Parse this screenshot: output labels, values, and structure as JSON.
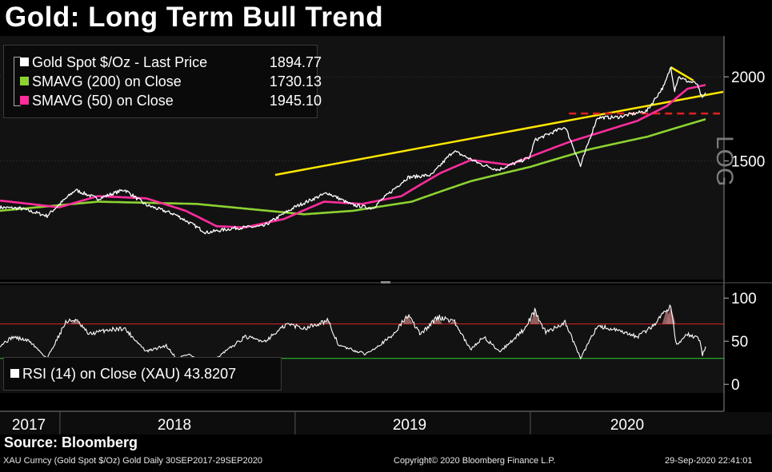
{
  "title": "Gold: Long Term Bull Trend",
  "legend": {
    "items": [
      {
        "label": "Gold Spot   $/Oz - Last Price",
        "value": "1894.77",
        "color": "#ffffff"
      },
      {
        "label": "SMAVG (200)  on Close",
        "value": "1730.13",
        "color": "#8cd331"
      },
      {
        "label": "SMAVG (50)  on Close",
        "value": "1945.10",
        "color": "#ff2d9c"
      }
    ]
  },
  "rsi_legend": {
    "label": "RSI (14)  on Close (XAU) 43.8207",
    "color": "#ffffff"
  },
  "scale_label": "LOG",
  "source": "Source:  Bloomberg",
  "footer": {
    "left": "XAU Curncy (Gold Spot  $/Oz) Gold  Daily 30SEP2017-29SEP2020",
    "center": "Copyright© 2020 Bloomberg Finance L.P.",
    "right": "29-Sep-2020 22:41:01"
  },
  "chart_data": [
    {
      "type": "line",
      "title": "Gold: Long Term Bull Trend",
      "y_scale": "log",
      "ylim": [
        1000,
        2300
      ],
      "y_ticks": [
        1500,
        2000
      ],
      "x_tick_labels": [
        "2017",
        "2018",
        "2019",
        "2020"
      ],
      "x_range": [
        "2017-09-30",
        "2020-09-29"
      ],
      "series": [
        {
          "name": "Gold Spot   $/Oz - Last Price",
          "color": "#ffffff",
          "points": [
            [
              "2017-09-30",
              1280
            ],
            [
              "2017-11-01",
              1275
            ],
            [
              "2017-12-12",
              1243
            ],
            [
              "2018-01-25",
              1358
            ],
            [
              "2018-03-01",
              1318
            ],
            [
              "2018-04-11",
              1360
            ],
            [
              "2018-05-15",
              1290
            ],
            [
              "2018-06-28",
              1250
            ],
            [
              "2018-08-16",
              1174
            ],
            [
              "2018-09-28",
              1192
            ],
            [
              "2018-11-13",
              1200
            ],
            [
              "2019-01-01",
              1282
            ],
            [
              "2019-02-20",
              1345
            ],
            [
              "2019-03-29",
              1292
            ],
            [
              "2019-05-01",
              1276
            ],
            [
              "2019-06-25",
              1418
            ],
            [
              "2019-08-01",
              1430
            ],
            [
              "2019-09-04",
              1552
            ],
            [
              "2019-10-15",
              1485
            ],
            [
              "2019-11-12",
              1455
            ],
            [
              "2019-12-31",
              1518
            ],
            [
              "2020-01-08",
              1610
            ],
            [
              "2020-02-24",
              1685
            ],
            [
              "2020-03-19",
              1473
            ],
            [
              "2020-04-14",
              1740
            ],
            [
              "2020-05-15",
              1742
            ],
            [
              "2020-06-30",
              1780
            ],
            [
              "2020-07-27",
              1942
            ],
            [
              "2020-08-06",
              2067
            ],
            [
              "2020-08-12",
              1912
            ],
            [
              "2020-08-18",
              2000
            ],
            [
              "2020-09-01",
              1970
            ],
            [
              "2020-09-15",
              1955
            ],
            [
              "2020-09-24",
              1855
            ],
            [
              "2020-09-29",
              1894.77
            ]
          ]
        },
        {
          "name": "SMAVG (50)  on Close",
          "color": "#ff2d9c",
          "points": [
            [
              "2017-09-30",
              1310
            ],
            [
              "2017-12-31",
              1280
            ],
            [
              "2018-03-01",
              1330
            ],
            [
              "2018-05-15",
              1320
            ],
            [
              "2018-07-15",
              1265
            ],
            [
              "2018-09-01",
              1200
            ],
            [
              "2018-10-15",
              1195
            ],
            [
              "2018-12-15",
              1230
            ],
            [
              "2019-02-15",
              1305
            ],
            [
              "2019-04-15",
              1295
            ],
            [
              "2019-06-15",
              1330
            ],
            [
              "2019-08-15",
              1440
            ],
            [
              "2019-10-01",
              1505
            ],
            [
              "2019-11-30",
              1480
            ],
            [
              "2020-01-15",
              1540
            ],
            [
              "2020-03-01",
              1600
            ],
            [
              "2020-04-15",
              1650
            ],
            [
              "2020-06-15",
              1720
            ],
            [
              "2020-07-31",
              1810
            ],
            [
              "2020-09-01",
              1920
            ],
            [
              "2020-09-29",
              1945.1
            ]
          ]
        },
        {
          "name": "SMAVG (200)  on Close",
          "color": "#8cd331",
          "points": [
            [
              "2017-09-30",
              1265
            ],
            [
              "2018-03-01",
              1305
            ],
            [
              "2018-08-01",
              1295
            ],
            [
              "2018-11-01",
              1270
            ],
            [
              "2019-01-15",
              1250
            ],
            [
              "2019-04-01",
              1265
            ],
            [
              "2019-07-01",
              1305
            ],
            [
              "2019-10-01",
              1400
            ],
            [
              "2020-01-01",
              1470
            ],
            [
              "2020-04-01",
              1560
            ],
            [
              "2020-07-01",
              1630
            ],
            [
              "2020-09-29",
              1730.13
            ]
          ]
        }
      ],
      "annotations": [
        {
          "type": "trendline",
          "color": "#ffe600",
          "from": [
            "2018-12-01",
            1430
          ],
          "to": [
            "2020-09-29",
            1900
          ]
        },
        {
          "type": "trendline",
          "color": "#ffe600",
          "from": [
            "2020-08-06",
            2067
          ],
          "to": [
            "2020-09-10",
            1975
          ]
        },
        {
          "type": "dashed-level",
          "color": "#e02020",
          "from": [
            "2020-03-01",
            1764
          ],
          "to": [
            "2020-09-29",
            1764
          ]
        }
      ]
    },
    {
      "type": "line",
      "ylim": [
        -10,
        115
      ],
      "y_ticks": [
        0,
        50,
        100
      ],
      "levels": [
        {
          "value": 70,
          "color": "#d22"
        },
        {
          "value": 30,
          "color": "#3c3"
        }
      ],
      "series": [
        {
          "name": "RSI (14)  on Close (XAU)",
          "color": "#ffffff",
          "points": [
            [
              "2017-09-30",
              45
            ],
            [
              "2017-10-20",
              55
            ],
            [
              "2017-11-15",
              50
            ],
            [
              "2017-12-12",
              30
            ],
            [
              "2018-01-10",
              72
            ],
            [
              "2018-01-25",
              75
            ],
            [
              "2018-02-15",
              58
            ],
            [
              "2018-03-15",
              63
            ],
            [
              "2018-04-11",
              65
            ],
            [
              "2018-05-15",
              38
            ],
            [
              "2018-06-15",
              45
            ],
            [
              "2018-07-01",
              30
            ],
            [
              "2018-07-20",
              35
            ],
            [
              "2018-08-16",
              22
            ],
            [
              "2018-09-15",
              38
            ],
            [
              "2018-10-15",
              55
            ],
            [
              "2018-11-15",
              50
            ],
            [
              "2018-12-20",
              70
            ],
            [
              "2019-01-15",
              65
            ],
            [
              "2019-02-20",
              74
            ],
            [
              "2019-03-10",
              45
            ],
            [
              "2019-04-20",
              35
            ],
            [
              "2019-05-30",
              55
            ],
            [
              "2019-06-25",
              80
            ],
            [
              "2019-07-15",
              58
            ],
            [
              "2019-08-10",
              78
            ],
            [
              "2019-09-04",
              74
            ],
            [
              "2019-09-30",
              40
            ],
            [
              "2019-10-20",
              55
            ],
            [
              "2019-11-15",
              38
            ],
            [
              "2019-12-20",
              62
            ],
            [
              "2020-01-08",
              85
            ],
            [
              "2020-01-25",
              60
            ],
            [
              "2020-02-24",
              72
            ],
            [
              "2020-03-19",
              30
            ],
            [
              "2020-04-14",
              68
            ],
            [
              "2020-05-15",
              62
            ],
            [
              "2020-06-15",
              55
            ],
            [
              "2020-07-10",
              68
            ],
            [
              "2020-07-31",
              88
            ],
            [
              "2020-08-06",
              90
            ],
            [
              "2020-08-15",
              45
            ],
            [
              "2020-09-01",
              58
            ],
            [
              "2020-09-20",
              52
            ],
            [
              "2020-09-24",
              34
            ],
            [
              "2020-09-29",
              43.8207
            ]
          ]
        }
      ]
    }
  ]
}
